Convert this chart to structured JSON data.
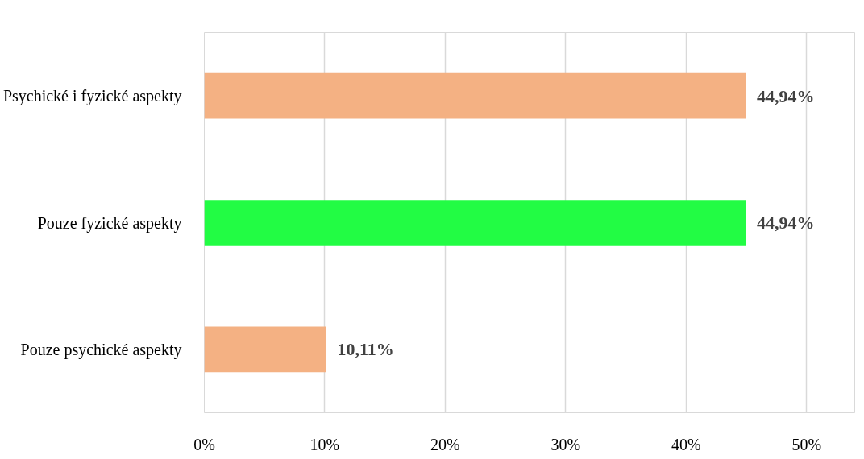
{
  "chart_data": {
    "type": "bar",
    "orientation": "horizontal",
    "categories": [
      "Psychické i fyzické aspekty",
      "Pouze fyzické aspekty",
      "Pouze psychické aspekty"
    ],
    "values": [
      44.94,
      44.94,
      10.11
    ],
    "colors": [
      "#f4b183",
      "#22fc44",
      "#f4b183"
    ],
    "value_labels": [
      "44,94%",
      "44,94%",
      "10,11%"
    ],
    "xlim": [
      0,
      54
    ],
    "xticks": [
      {
        "value": 0,
        "label": "0%"
      },
      {
        "value": 10,
        "label": "10%"
      },
      {
        "value": 20,
        "label": "20%"
      },
      {
        "value": 30,
        "label": "30%"
      },
      {
        "value": 40,
        "label": "40%"
      },
      {
        "value": 50,
        "label": "50%"
      }
    ],
    "grid": "x",
    "legend": false
  }
}
